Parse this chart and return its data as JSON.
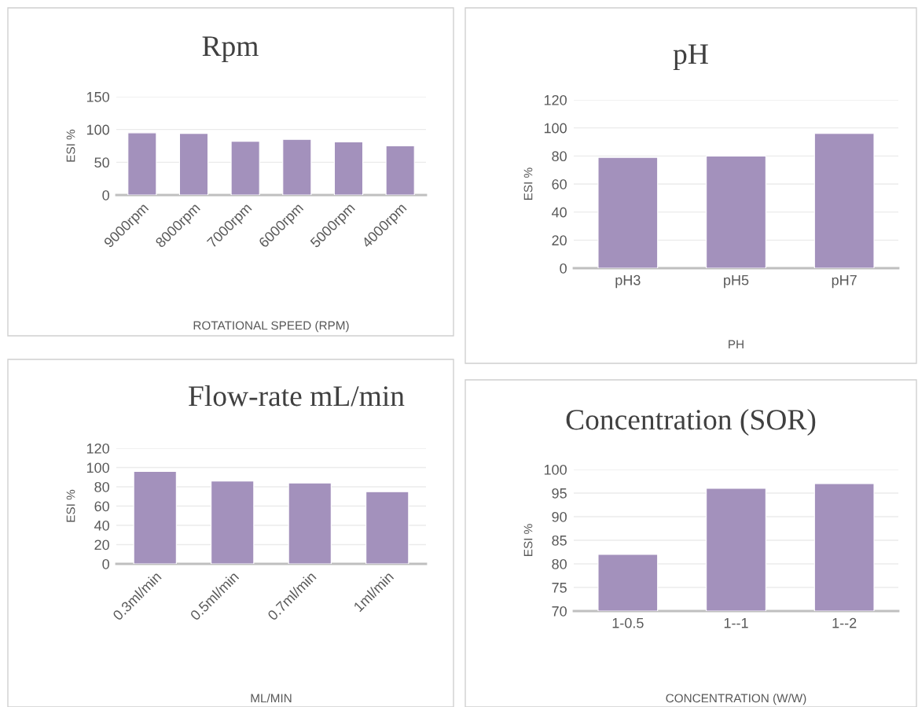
{
  "chart_data": [
    {
      "type": "bar",
      "title": "Rpm",
      "xlabel": "ROTATIONAL SPEED (RPM)",
      "ylabel": "ESI %",
      "categories": [
        "9000rpm",
        "8000rpm",
        "7000rpm",
        "6000rpm",
        "5000rpm",
        "4000rpm"
      ],
      "values": [
        95,
        94,
        82,
        85,
        81,
        75
      ],
      "color": "#a391bc",
      "ylim": [
        0,
        150
      ],
      "yticks": [
        0,
        50,
        100,
        150
      ],
      "grid": "y",
      "legend": false
    },
    {
      "type": "bar",
      "title": "pH",
      "xlabel": "PH",
      "ylabel": "ESI %",
      "categories": [
        "pH3",
        "pH5",
        "pH7"
      ],
      "values": [
        79,
        80,
        96
      ],
      "color": "#a391bc",
      "ylim": [
        0,
        120
      ],
      "yticks": [
        0,
        20,
        40,
        60,
        80,
        100,
        120
      ],
      "grid": "y",
      "legend": false
    },
    {
      "type": "bar",
      "title": "Flow-rate mL/min",
      "xlabel": "ML/MIN",
      "ylabel": "ESI %",
      "categories": [
        "0.3ml/min",
        "0.5ml/min",
        "0.7ml/min",
        "1ml/min"
      ],
      "values": [
        96,
        86,
        84,
        75
      ],
      "color": "#a391bc",
      "ylim": [
        0,
        120
      ],
      "yticks": [
        0,
        20,
        40,
        60,
        80,
        100,
        120
      ],
      "grid": "y",
      "legend": false
    },
    {
      "type": "bar",
      "title": "Concentration (SOR)",
      "xlabel": "CONCENTRATION (W/W)",
      "ylabel": "ESI %",
      "categories": [
        "1-0.5",
        "1--1",
        "1--2"
      ],
      "values": [
        82,
        96,
        97
      ],
      "color": "#a391bc",
      "ylim": [
        70,
        100
      ],
      "yticks": [
        70,
        75,
        80,
        85,
        90,
        95,
        100
      ],
      "grid": "y",
      "legend": false
    }
  ]
}
